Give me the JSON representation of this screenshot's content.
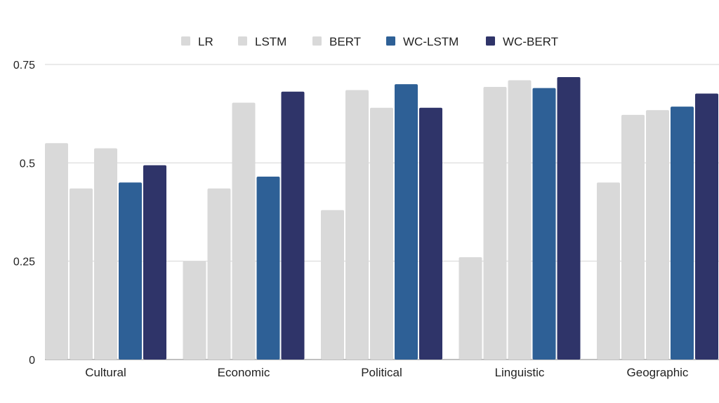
{
  "chart_data": {
    "type": "bar",
    "categories": [
      "Cultural",
      "Economic",
      "Political",
      "Linguistic",
      "Geographic"
    ],
    "series": [
      {
        "name": "LR",
        "color": "#d9d9d9",
        "values": [
          0.55,
          0.25,
          0.38,
          0.26,
          0.45
        ]
      },
      {
        "name": "LSTM",
        "color": "#d9d9d9",
        "values": [
          0.435,
          0.435,
          0.685,
          0.693,
          0.622
        ]
      },
      {
        "name": "BERT",
        "color": "#d9d9d9",
        "values": [
          0.537,
          0.653,
          0.64,
          0.71,
          0.634
        ]
      },
      {
        "name": "WC-LSTM",
        "color": "#2e6096",
        "values": [
          0.45,
          0.465,
          0.7,
          0.69,
          0.643
        ]
      },
      {
        "name": "WC-BERT",
        "color": "#2f3469",
        "values": [
          0.494,
          0.681,
          0.64,
          0.718,
          0.676
        ]
      }
    ],
    "yticks": [
      "0",
      "0.25",
      "0.5",
      "0.75"
    ],
    "ylim": [
      0,
      0.75
    ],
    "grid": true,
    "legend_position": "top-center"
  }
}
